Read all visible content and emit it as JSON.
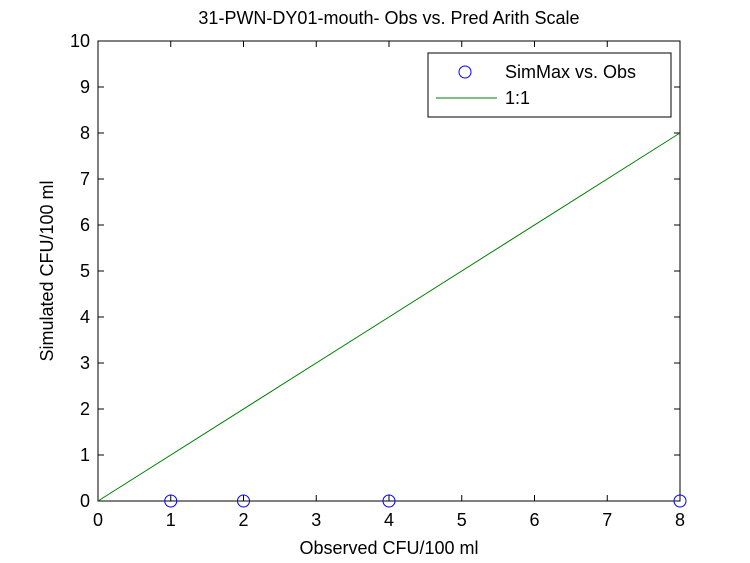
{
  "chart_data": {
    "type": "scatter",
    "title": "31-PWN-DY01-mouth- Obs vs. Pred Arith Scale",
    "xlabel": "Observed CFU/100 ml",
    "ylabel": "Simulated CFU/100 ml",
    "xlim": [
      0,
      8
    ],
    "ylim": [
      0,
      10
    ],
    "xticks": [
      "0",
      "1",
      "2",
      "3",
      "4",
      "5",
      "6",
      "7",
      "8"
    ],
    "yticks": [
      "0",
      "1",
      "2",
      "3",
      "4",
      "5",
      "6",
      "7",
      "8",
      "9",
      "10"
    ],
    "grid": false,
    "legend_position": "top-right",
    "series": [
      {
        "name": "SimMax vs. Obs",
        "kind": "markers",
        "marker": "circle",
        "color": "#0000ff",
        "x": [
          1,
          2,
          4,
          8
        ],
        "y": [
          0,
          0,
          0,
          0
        ]
      },
      {
        "name": "1:1",
        "kind": "line",
        "color": "#008000",
        "x": [
          0,
          8
        ],
        "y": [
          0,
          8
        ]
      }
    ]
  }
}
